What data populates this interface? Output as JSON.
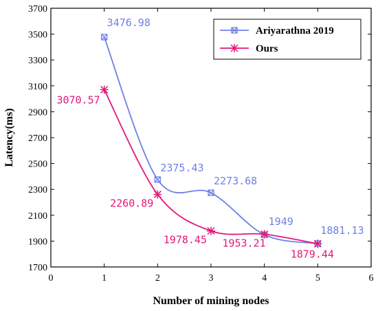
{
  "chart_data": {
    "type": "line",
    "xlabel": "Number of mining nodes",
    "ylabel": "Latency(ms)",
    "xlim": [
      0,
      6
    ],
    "ylim": [
      1700,
      3700
    ],
    "xticks": [
      "0",
      "1",
      "2",
      "3",
      "4",
      "5",
      "6"
    ],
    "yticks": [
      "1700",
      "1900",
      "2100",
      "2300",
      "2500",
      "2700",
      "2900",
      "3100",
      "3300",
      "3500",
      "3700"
    ],
    "grid": false,
    "legend_position": "top-right",
    "series": [
      {
        "name": "Ariyarathna 2019",
        "color": "#6f7fe8",
        "marker": "crossed-square",
        "x": [
          1,
          2,
          3,
          4,
          5
        ],
        "y": [
          3476.98,
          2375.43,
          2273.68,
          1949,
          1881.13
        ],
        "labels": [
          "3476.98",
          "2375.43",
          "2273.68",
          "1949",
          "1881.13"
        ]
      },
      {
        "name": "Ours",
        "color": "#e4177a",
        "marker": "asterisk",
        "x": [
          1,
          2,
          3,
          4,
          5
        ],
        "y": [
          3070.57,
          2260.89,
          1978.45,
          1953.21,
          1879.44
        ],
        "labels": [
          "3070.57",
          "2260.89",
          "1978.45",
          "1953.21",
          "1879.44"
        ]
      }
    ]
  }
}
